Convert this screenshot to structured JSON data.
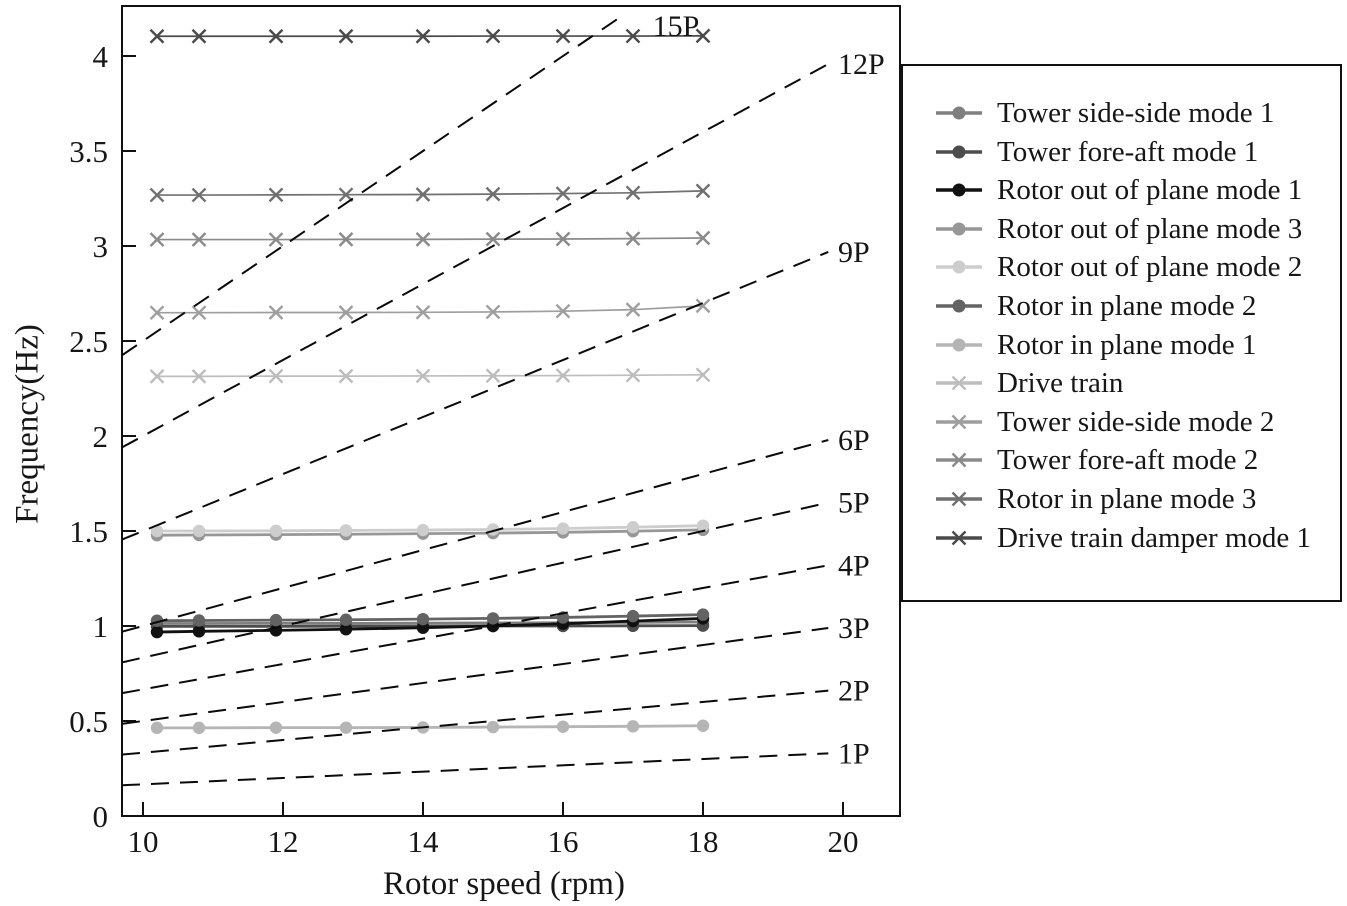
{
  "figure": {
    "background": "#ffffff",
    "frame_color": "#111111"
  },
  "chart_data": {
    "type": "line",
    "title": "",
    "xlabel": "Rotor speed (rpm)",
    "ylabel": "Frequency(Hz)",
    "xlim": [
      9.7,
      20.8
    ],
    "ylim": [
      0,
      4.26
    ],
    "xticks": [
      10,
      12,
      14,
      16,
      18,
      20
    ],
    "xtick_labels": [
      "10",
      "12",
      "14",
      "16",
      "18",
      "20"
    ],
    "yticks": [
      0,
      0.5,
      1,
      1.5,
      2,
      2.5,
      3,
      3.5,
      4
    ],
    "ytick_labels": [
      "0",
      "0.5",
      "1",
      "1.5",
      "2",
      "2.5",
      "3",
      "3.5",
      "4"
    ],
    "grid": false,
    "legend_position": "outside-right",
    "x_rpm": [
      10.2,
      10.8,
      11.9,
      12.9,
      14.0,
      15.0,
      16.0,
      17.0,
      18.0
    ],
    "series": [
      {
        "name": "Tower side-side mode 1",
        "marker": "circle",
        "color": "#7f7f7f",
        "values": [
          1.013,
          1.013,
          1.014,
          1.014,
          1.015,
          1.016,
          1.017,
          1.019,
          1.021
        ]
      },
      {
        "name": "Tower fore-aft mode 1",
        "marker": "circle",
        "color": "#4d4d4d",
        "values": [
          0.998,
          0.998,
          0.998,
          0.999,
          0.999,
          1.0,
          1.0,
          1.001,
          1.002
        ]
      },
      {
        "name": "Rotor out of plane mode 1",
        "marker": "circle",
        "color": "#111111",
        "values": [
          0.968,
          0.972,
          0.977,
          0.983,
          0.991,
          1.0,
          1.012,
          1.026,
          1.04
        ]
      },
      {
        "name": "Rotor out of plane mode 3",
        "marker": "circle",
        "color": "#979797",
        "values": [
          1.478,
          1.479,
          1.481,
          1.483,
          1.486,
          1.489,
          1.493,
          1.499,
          1.506
        ]
      },
      {
        "name": "Rotor out of plane mode 2",
        "marker": "circle",
        "color": "#cdcdcd",
        "values": [
          1.5,
          1.5,
          1.501,
          1.503,
          1.505,
          1.508,
          1.513,
          1.52,
          1.528
        ]
      },
      {
        "name": "Rotor in plane mode 2",
        "marker": "circle",
        "color": "#636363",
        "values": [
          1.028,
          1.029,
          1.031,
          1.033,
          1.036,
          1.04,
          1.045,
          1.052,
          1.06
        ]
      },
      {
        "name": "Rotor in plane mode 1",
        "marker": "circle",
        "color": "#b5b5b5",
        "values": [
          0.464,
          0.464,
          0.465,
          0.465,
          0.466,
          0.468,
          0.47,
          0.472,
          0.475
        ]
      },
      {
        "name": "Drive train",
        "marker": "x",
        "color": "#bdbdbd",
        "values": [
          2.314,
          2.314,
          2.315,
          2.315,
          2.316,
          2.317,
          2.318,
          2.32,
          2.322
        ]
      },
      {
        "name": "Tower side-side mode 2",
        "marker": "x",
        "color": "#9e9e9e",
        "values": [
          2.649,
          2.649,
          2.65,
          2.65,
          2.651,
          2.653,
          2.657,
          2.665,
          2.685
        ]
      },
      {
        "name": "Tower fore-aft mode 2",
        "marker": "x",
        "color": "#8a8a8a",
        "values": [
          3.034,
          3.034,
          3.034,
          3.035,
          3.035,
          3.036,
          3.037,
          3.039,
          3.042
        ]
      },
      {
        "name": "Rotor in plane mode 3",
        "marker": "x",
        "color": "#707070",
        "values": [
          3.268,
          3.268,
          3.269,
          3.27,
          3.271,
          3.273,
          3.276,
          3.28,
          3.29
        ]
      },
      {
        "name": "Drive train damper mode 1",
        "marker": "x",
        "color": "#4a4a4a",
        "values": [
          4.104,
          4.104,
          4.104,
          4.104,
          4.104,
          4.105,
          4.105,
          4.105,
          4.106
        ]
      }
    ],
    "harmonics": {
      "description": "dashed excitation-order lines, frequency = n * rpm / 60",
      "line_color": "#0a0a0a",
      "orders": [
        {
          "label": "1P",
          "n": 1
        },
        {
          "label": "2P",
          "n": 2
        },
        {
          "label": "3P",
          "n": 3
        },
        {
          "label": "4P",
          "n": 4
        },
        {
          "label": "5P",
          "n": 5
        },
        {
          "label": "6P",
          "n": 6
        },
        {
          "label": "9P",
          "n": 9
        },
        {
          "label": "12P",
          "n": 12
        },
        {
          "label": "15P",
          "n": 15
        }
      ]
    },
    "legend_entries": [
      "Tower side-side mode 1",
      "Tower fore-aft mode 1",
      "Rotor out of plane mode 1",
      "Rotor out of plane mode 3",
      "Rotor out of plane mode 2",
      "Rotor in plane mode 2",
      "Rotor in plane mode 1",
      "Drive train",
      "Tower side-side mode 2",
      "Tower fore-aft mode 2",
      "Rotor in plane mode 3",
      "Drive train damper mode 1"
    ]
  }
}
